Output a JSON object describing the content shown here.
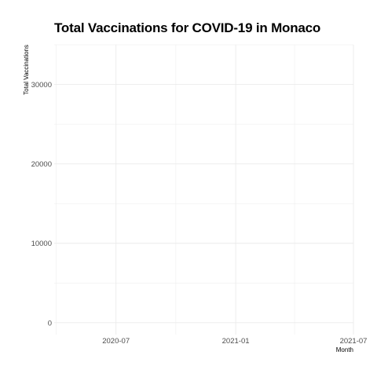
{
  "chart_data": {
    "type": "line",
    "title": "Total Vaccinations for COVID-19 in Monaco",
    "xlabel": "Month",
    "ylabel": "Total Vaccinations",
    "x_tick_labels": [
      "2020-07",
      "2021-01",
      "2021-07"
    ],
    "y_tick_labels": [
      "0",
      "10000",
      "20000",
      "30000"
    ],
    "x_major_ticks": [
      "2020-07-01",
      "2021-01-01",
      "2021-07-01"
    ],
    "xlim": [
      "2020-03-28",
      "2021-07-01"
    ],
    "ylim": [
      -1500,
      35000
    ],
    "y_ticks": [
      0,
      10000,
      20000,
      30000
    ],
    "grid": true,
    "legend": "none",
    "series": [
      {
        "x": [],
        "values": []
      }
    ],
    "colors": {
      "grid": "#ebebeb",
      "text": "#4d4d4d",
      "background": "#ffffff"
    }
  }
}
